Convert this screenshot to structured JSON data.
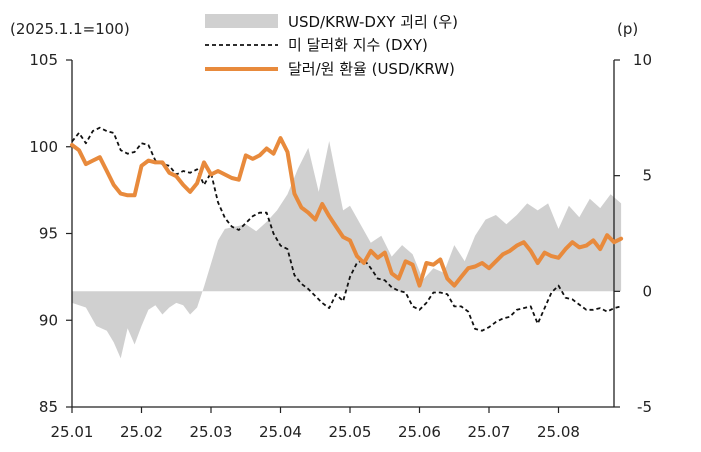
{
  "chart_data": {
    "type": "line",
    "left_axis_unit": "(2025.1.1=100)",
    "right_axis_unit": "(p)",
    "x_ticks": [
      "25.01",
      "25.02",
      "25.03",
      "25.04",
      "25.05",
      "25.06",
      "25.07",
      "25.08"
    ],
    "left_ylim": [
      85,
      105
    ],
    "left_yticks": [
      "105",
      "100",
      "95",
      "90",
      "85"
    ],
    "right_ylim": [
      -5,
      10
    ],
    "right_yticks": [
      "10",
      "5",
      "0",
      "-5"
    ],
    "x_range_months": [
      0,
      7.9
    ],
    "legend_position": "top",
    "colors": {
      "spread": "#d0d0d0",
      "dxy": "#111111",
      "krw": "#e88a3c"
    },
    "series": [
      {
        "name": "USD/KRW-DXY 괴리 (우)",
        "style": "area",
        "axis": "right",
        "x": [
          0,
          0.2,
          0.35,
          0.5,
          0.6,
          0.7,
          0.8,
          0.9,
          1.0,
          1.1,
          1.2,
          1.3,
          1.4,
          1.5,
          1.6,
          1.7,
          1.8,
          1.9,
          2.0,
          2.1,
          2.2,
          2.35,
          2.5,
          2.65,
          2.8,
          2.95,
          3.1,
          3.25,
          3.4,
          3.55,
          3.7,
          3.8,
          3.9,
          4.0,
          4.15,
          4.3,
          4.45,
          4.6,
          4.75,
          4.9,
          5.05,
          5.2,
          5.35,
          5.5,
          5.65,
          5.8,
          5.95,
          6.1,
          6.25,
          6.4,
          6.55,
          6.7,
          6.85,
          7.0,
          7.15,
          7.3,
          7.45,
          7.6,
          7.75,
          7.9
        ],
        "values": [
          -0.5,
          -0.7,
          -1.5,
          -1.7,
          -2.2,
          -2.9,
          -1.6,
          -2.3,
          -1.5,
          -0.8,
          -0.6,
          -1.0,
          -0.7,
          -0.5,
          -0.6,
          -1.0,
          -0.7,
          0.2,
          1.2,
          2.2,
          2.7,
          2.8,
          2.9,
          2.6,
          3.0,
          3.5,
          4.2,
          5.3,
          6.2,
          4.3,
          6.5,
          5.0,
          3.5,
          3.7,
          2.9,
          2.1,
          2.4,
          1.5,
          2.0,
          1.6,
          0.5,
          1.0,
          0.8,
          2.0,
          1.3,
          2.4,
          3.1,
          3.3,
          2.9,
          3.3,
          3.8,
          3.5,
          3.8,
          2.7,
          3.7,
          3.2,
          4.0,
          3.6,
          4.2,
          3.8
        ]
      },
      {
        "name": "미 달러화 지수 (DXY)",
        "style": "dashed",
        "axis": "left",
        "x": [
          0,
          0.1,
          0.2,
          0.3,
          0.4,
          0.5,
          0.6,
          0.7,
          0.8,
          0.9,
          1.0,
          1.1,
          1.2,
          1.3,
          1.4,
          1.5,
          1.6,
          1.7,
          1.8,
          1.9,
          2.0,
          2.1,
          2.2,
          2.3,
          2.4,
          2.5,
          2.6,
          2.7,
          2.8,
          2.9,
          3.0,
          3.1,
          3.2,
          3.3,
          3.4,
          3.5,
          3.6,
          3.7,
          3.8,
          3.9,
          4.0,
          4.1,
          4.2,
          4.3,
          4.4,
          4.5,
          4.6,
          4.7,
          4.8,
          4.9,
          5.0,
          5.1,
          5.2,
          5.3,
          5.4,
          5.5,
          5.6,
          5.7,
          5.8,
          5.9,
          6.0,
          6.1,
          6.2,
          6.3,
          6.4,
          6.5,
          6.6,
          6.7,
          6.8,
          6.9,
          7.0,
          7.1,
          7.2,
          7.3,
          7.4,
          7.5,
          7.6,
          7.7,
          7.8,
          7.9
        ],
        "values": [
          100.3,
          100.8,
          100.2,
          100.9,
          101.1,
          100.9,
          100.8,
          99.8,
          99.6,
          99.7,
          100.2,
          100.1,
          99.2,
          99.0,
          98.9,
          98.4,
          98.6,
          98.5,
          98.7,
          97.8,
          98.5,
          96.8,
          95.9,
          95.4,
          95.2,
          95.6,
          96.0,
          96.2,
          96.2,
          95.0,
          94.3,
          94.1,
          92.6,
          92.1,
          91.8,
          91.4,
          91.0,
          90.7,
          91.5,
          91.1,
          92.5,
          93.3,
          93.5,
          93.0,
          92.4,
          92.3,
          91.9,
          91.7,
          91.6,
          90.8,
          90.6,
          91.0,
          91.6,
          91.6,
          91.5,
          90.8,
          90.8,
          90.5,
          89.5,
          89.4,
          89.6,
          89.9,
          90.1,
          90.2,
          90.6,
          90.7,
          90.8,
          89.8,
          90.7,
          91.6,
          92.0,
          91.3,
          91.2,
          90.9,
          90.6,
          90.6,
          90.7,
          90.5,
          90.7,
          90.8
        ]
      },
      {
        "name": "달러/원 환율 (USD/KRW)",
        "style": "line",
        "axis": "left",
        "x": [
          0,
          0.1,
          0.2,
          0.3,
          0.4,
          0.5,
          0.6,
          0.7,
          0.8,
          0.9,
          1.0,
          1.1,
          1.2,
          1.3,
          1.4,
          1.5,
          1.6,
          1.7,
          1.8,
          1.9,
          2.0,
          2.1,
          2.2,
          2.3,
          2.4,
          2.5,
          2.6,
          2.7,
          2.8,
          2.9,
          3.0,
          3.1,
          3.2,
          3.3,
          3.4,
          3.5,
          3.6,
          3.7,
          3.8,
          3.9,
          4.0,
          4.1,
          4.2,
          4.3,
          4.4,
          4.5,
          4.6,
          4.7,
          4.8,
          4.9,
          5.0,
          5.1,
          5.2,
          5.3,
          5.4,
          5.5,
          5.6,
          5.7,
          5.8,
          5.9,
          6.0,
          6.1,
          6.2,
          6.3,
          6.4,
          6.5,
          6.6,
          6.7,
          6.8,
          6.9,
          7.0,
          7.1,
          7.2,
          7.3,
          7.4,
          7.5,
          7.6,
          7.7,
          7.8,
          7.9
        ],
        "values": [
          100.1,
          99.8,
          99.0,
          99.2,
          99.4,
          98.6,
          97.8,
          97.3,
          97.2,
          97.2,
          98.9,
          99.2,
          99.1,
          99.1,
          98.5,
          98.3,
          97.8,
          97.4,
          97.9,
          99.1,
          98.4,
          98.6,
          98.4,
          98.2,
          98.1,
          99.5,
          99.3,
          99.5,
          99.9,
          99.6,
          100.5,
          99.7,
          97.3,
          96.5,
          96.2,
          95.8,
          96.7,
          96.0,
          95.4,
          94.8,
          94.6,
          93.7,
          93.3,
          94.0,
          93.6,
          93.9,
          92.7,
          92.4,
          93.4,
          93.2,
          92.0,
          93.3,
          93.2,
          93.5,
          92.4,
          92.0,
          92.5,
          93.0,
          93.1,
          93.3,
          93.0,
          93.4,
          93.8,
          94.0,
          94.3,
          94.5,
          94.0,
          93.3,
          93.9,
          93.7,
          93.6,
          94.1,
          94.5,
          94.2,
          94.3,
          94.6,
          94.1,
          94.9,
          94.5,
          94.7
        ]
      }
    ]
  }
}
